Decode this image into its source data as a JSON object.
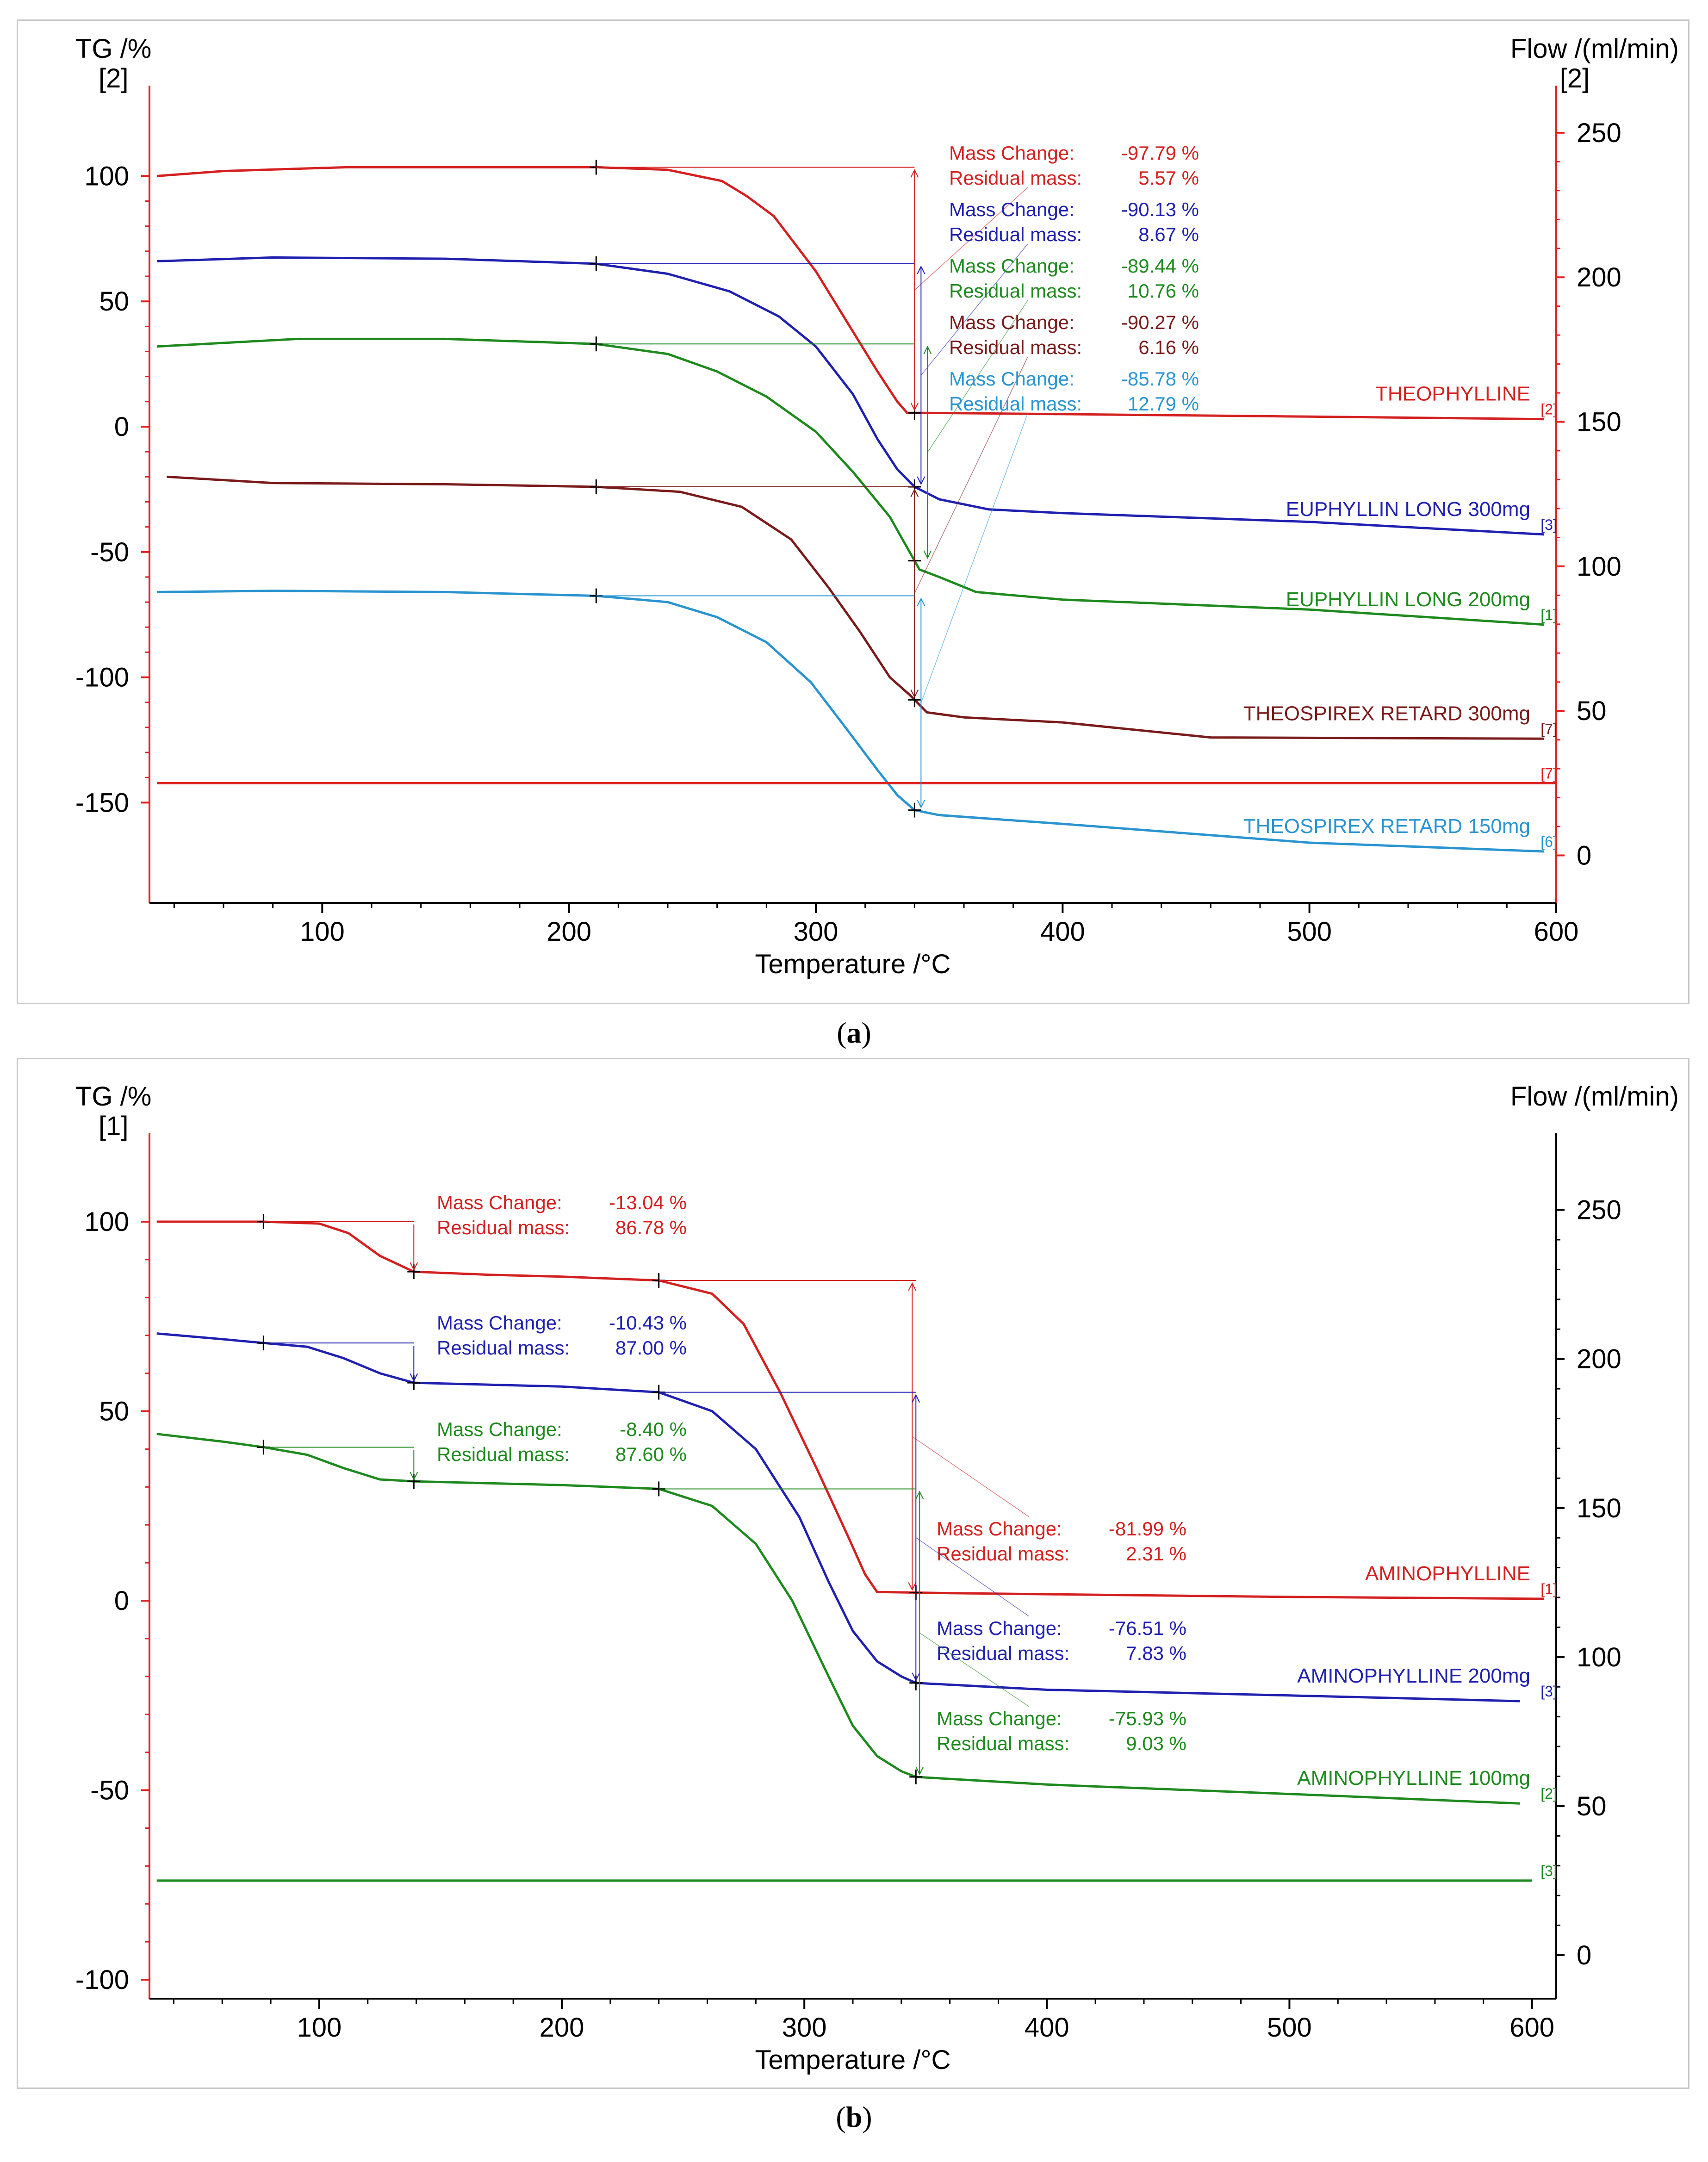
{
  "chart_data": [
    {
      "type": "line",
      "panel": "a",
      "caption": "a",
      "xlabel": "Temperature /°C",
      "xlim": [
        30,
        600
      ],
      "xticks": [
        100,
        200,
        300,
        400,
        500,
        600
      ],
      "y_left": {
        "label": "TG /%",
        "sublabel": "[2]",
        "lim": [
          -190,
          125
        ],
        "ticks": [
          100,
          50,
          0,
          -50,
          -100,
          -150
        ],
        "color": "#e02020"
      },
      "y_right": {
        "label": "Flow /(ml/min)",
        "sublabel": "[2]",
        "lim": [
          -16.4,
          256.7
        ],
        "ticks": [
          250,
          200,
          150,
          100,
          50,
          0
        ],
        "color": "#e02020"
      },
      "series": [
        {
          "name": "THEOPHYLLINE",
          "tag": "[2]",
          "color": "#d42020",
          "points": [
            [
              33,
              100
            ],
            [
              60,
              102
            ],
            [
              110,
              103.5
            ],
            [
              211,
              103.5
            ],
            [
              240,
              102.5
            ],
            [
              262,
              98
            ],
            [
              272,
              92
            ],
            [
              283,
              84
            ],
            [
              300,
              62
            ],
            [
              315,
              38
            ],
            [
              325,
              22
            ],
            [
              333,
              10
            ],
            [
              337,
              5.5
            ],
            [
              345,
              5.5
            ],
            [
              400,
              5
            ],
            [
              500,
              4
            ],
            [
              595,
              3
            ]
          ],
          "annotation": {
            "mass_change": "-97.79 %",
            "residual_mass": "5.57 %"
          }
        },
        {
          "name": "EUPHYLLIN LONG 300mg",
          "tag": "[3]",
          "color": "#2020b0",
          "points": [
            [
              33,
              66
            ],
            [
              80,
              67.5
            ],
            [
              150,
              67
            ],
            [
              211,
              65
            ],
            [
              240,
              61
            ],
            [
              265,
              54
            ],
            [
              285,
              44
            ],
            [
              300,
              32
            ],
            [
              315,
              13
            ],
            [
              325,
              -5
            ],
            [
              333,
              -17
            ],
            [
              340,
              -24
            ],
            [
              350,
              -29
            ],
            [
              370,
              -33
            ],
            [
              400,
              -34.5
            ],
            [
              500,
              -38
            ],
            [
              595,
              -43
            ]
          ],
          "annotation": {
            "mass_change": "-90.13 %",
            "residual_mass": "8.67 %"
          }
        },
        {
          "name": "EUPHYLLIN LONG 200mg",
          "tag": "[1]",
          "color": "#1e8a1e",
          "points": [
            [
              33,
              32
            ],
            [
              90,
              35
            ],
            [
              150,
              35
            ],
            [
              211,
              33
            ],
            [
              240,
              29
            ],
            [
              260,
              22
            ],
            [
              280,
              12
            ],
            [
              300,
              -2
            ],
            [
              315,
              -18
            ],
            [
              330,
              -36
            ],
            [
              342,
              -57
            ],
            [
              350,
              -60
            ],
            [
              365,
              -66
            ],
            [
              400,
              -69
            ],
            [
              500,
              -73
            ],
            [
              595,
              -79
            ]
          ],
          "annotation": {
            "mass_change": "-89.44 %",
            "residual_mass": "10.76 %"
          }
        },
        {
          "name": "THEOSPIREX RETARD 300mg",
          "tag": "[7]",
          "color": "#7a1a1a",
          "points": [
            [
              37,
              -20
            ],
            [
              80,
              -22.5
            ],
            [
              150,
              -23
            ],
            [
              211,
              -24
            ],
            [
              245,
              -26
            ],
            [
              270,
              -32
            ],
            [
              290,
              -45
            ],
            [
              305,
              -64
            ],
            [
              318,
              -82
            ],
            [
              330,
              -100
            ],
            [
              338,
              -107
            ],
            [
              345,
              -114
            ],
            [
              360,
              -116
            ],
            [
              400,
              -118
            ],
            [
              460,
              -124
            ],
            [
              595,
              -124.5
            ]
          ],
          "annotation": {
            "mass_change": "-90.27 %",
            "residual_mass": "6.16 %"
          }
        },
        {
          "name": "THEOSPIREX RETARD 150mg",
          "tag": "[6]",
          "color": "#2a94d0",
          "points": [
            [
              33,
              -66
            ],
            [
              80,
              -65.5
            ],
            [
              150,
              -66
            ],
            [
              211,
              -67.5
            ],
            [
              240,
              -70
            ],
            [
              260,
              -76
            ],
            [
              280,
              -86
            ],
            [
              298,
              -102
            ],
            [
              312,
              -120
            ],
            [
              325,
              -137
            ],
            [
              333,
              -147
            ],
            [
              340,
              -153
            ],
            [
              350,
              -155
            ],
            [
              400,
              -158.5
            ],
            [
              500,
              -166
            ],
            [
              595,
              -169.5
            ]
          ],
          "annotation": {
            "mass_change": "-85.78 %",
            "residual_mass": "12.79 %"
          }
        },
        {
          "name": "Flow",
          "tag": "[7]",
          "color": "#e02020",
          "axis": "right",
          "points": [
            [
              33,
              25
            ],
            [
              600,
              25
            ]
          ]
        }
      ],
      "marker_temperatures": [
        211,
        340
      ],
      "annotation_labels": {
        "mass_change": "Mass Change:",
        "residual_mass": "Residual mass:"
      }
    },
    {
      "type": "line",
      "panel": "b",
      "caption": "b",
      "xlabel": "Temperature /°C",
      "xlim": [
        30,
        610
      ],
      "xticks": [
        100,
        200,
        300,
        400,
        500,
        600
      ],
      "y_left": {
        "label": "TG /%",
        "sublabel": "[1]",
        "lim": [
          -105,
          116
        ],
        "ticks": [
          100,
          50,
          0,
          -50,
          -100
        ],
        "color": "#e02020"
      },
      "y_right": {
        "label": "Flow /(ml/min)",
        "sublabel": "",
        "lim": [
          -14.6,
          266.4
        ],
        "ticks": [
          250,
          200,
          150,
          100,
          50,
          0
        ],
        "color": "#000000"
      },
      "series": [
        {
          "name": "AMINOPHYLLINE",
          "tag": "[1]",
          "color": "#d42020",
          "points": [
            [
              33,
              100
            ],
            [
              77,
              100
            ],
            [
              100,
              99.5
            ],
            [
              112,
              97
            ],
            [
              125,
              91
            ],
            [
              139,
              86.8
            ],
            [
              170,
              86
            ],
            [
              200,
              85.5
            ],
            [
              240,
              84.5
            ],
            [
              262,
              81
            ],
            [
              275,
              73
            ],
            [
              290,
              55
            ],
            [
              305,
              35
            ],
            [
              318,
              17
            ],
            [
              325,
              7
            ],
            [
              330,
              2.3
            ],
            [
              360,
              2
            ],
            [
              500,
              1
            ],
            [
              605,
              0.5
            ]
          ],
          "annotation_step1": {
            "mass_change": "-13.04 %",
            "residual_mass": "86.78 %"
          },
          "annotation": {
            "mass_change": "-81.99 %",
            "residual_mass": "2.31 %"
          }
        },
        {
          "name": "AMINOPHYLLINE 200mg",
          "tag": "[3]",
          "color": "#2020b0",
          "points": [
            [
              33,
              70.5
            ],
            [
              60,
              69
            ],
            [
              77,
              68
            ],
            [
              95,
              67
            ],
            [
              110,
              64
            ],
            [
              125,
              60
            ],
            [
              139,
              57.5
            ],
            [
              170,
              57
            ],
            [
              200,
              56.5
            ],
            [
              240,
              55
            ],
            [
              262,
              50
            ],
            [
              280,
              40
            ],
            [
              298,
              22
            ],
            [
              310,
              5
            ],
            [
              320,
              -8
            ],
            [
              330,
              -16
            ],
            [
              340,
              -20
            ],
            [
              346,
              -21.7
            ],
            [
              400,
              -23.5
            ],
            [
              500,
              -25
            ],
            [
              595,
              -26.5
            ]
          ],
          "annotation_step1": {
            "mass_change": "-10.43 %",
            "residual_mass": "87.00 %"
          },
          "annotation": {
            "mass_change": "-76.51 %",
            "residual_mass": "7.83 %"
          }
        },
        {
          "name": "AMINOPHYLLINE 100mg",
          "tag": "[2]",
          "color": "#1e8a1e",
          "points": [
            [
              33,
              44
            ],
            [
              60,
              42
            ],
            [
              77,
              40.5
            ],
            [
              95,
              38.5
            ],
            [
              110,
              35
            ],
            [
              125,
              32
            ],
            [
              139,
              31.5
            ],
            [
              170,
              31
            ],
            [
              200,
              30.5
            ],
            [
              240,
              29.5
            ],
            [
              262,
              25
            ],
            [
              280,
              15
            ],
            [
              295,
              0
            ],
            [
              310,
              -20
            ],
            [
              320,
              -33
            ],
            [
              330,
              -41
            ],
            [
              340,
              -45
            ],
            [
              346,
              -46.5
            ],
            [
              400,
              -48.5
            ],
            [
              500,
              -51
            ],
            [
              595,
              -53.5
            ]
          ],
          "annotation_step1": {
            "mass_change": "-8.40 %",
            "residual_mass": "87.60 %"
          },
          "annotation": {
            "mass_change": "-75.93 %",
            "residual_mass": "9.03 %"
          }
        },
        {
          "name": "Flow",
          "tag": "[3]",
          "color": "#1e8a1e",
          "axis": "right",
          "points": [
            [
              33,
              25
            ],
            [
              600,
              25
            ]
          ]
        }
      ],
      "marker_temperatures": [
        77,
        139,
        240,
        346
      ],
      "annotation_labels": {
        "mass_change": "Mass Change:",
        "residual_mass": "Residual mass:"
      }
    }
  ]
}
